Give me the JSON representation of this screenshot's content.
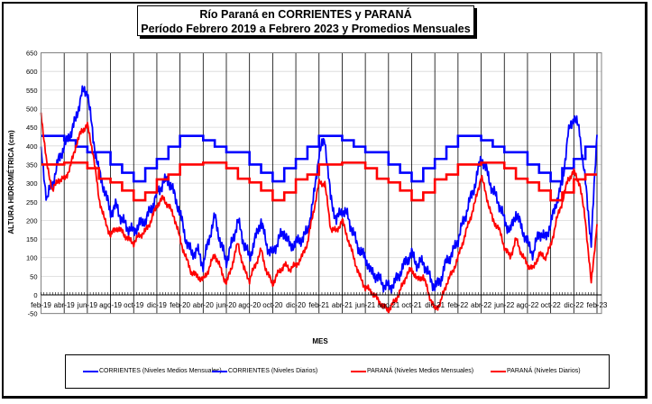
{
  "title_line1": "Río Paraná en CORRIENTES  y PARANÁ",
  "title_line2": "Período Febrero 2019 a Febrero 2023 y Promedios  Mensuales",
  "colors": {
    "corrientes": "#0000ff",
    "parana": "#ff0000"
  },
  "chart_data": {
    "type": "line",
    "title": "Río Paraná en CORRIENTES y PARANÁ - Período Febrero 2019 a Febrero 2023 y Promedios Mensuales",
    "xlabel": "MES",
    "ylabel": "ALTURA HIDROMÉTRICA (cm)",
    "ylim": [
      -50,
      650
    ],
    "yticks": [
      "-50",
      "0",
      "50",
      "100",
      "150",
      "200",
      "250",
      "300",
      "350",
      "400",
      "450",
      "500",
      "550",
      "600",
      "650"
    ],
    "xticks": [
      "feb-19",
      "abr-19",
      "jun-19",
      "ago-19",
      "oct-19",
      "dic-19",
      "feb-20",
      "abr-20",
      "jun-20",
      "ago-20",
      "oct-20",
      "dic-20",
      "feb-21",
      "abr-21",
      "jun-21",
      "ago-21",
      "oct-21",
      "dic-21",
      "feb-22",
      "abr-22",
      "jun-22",
      "ago-22",
      "oct-22",
      "dic-22",
      "feb-23"
    ],
    "x_unit": "months since feb-19",
    "legend_position": "bottom",
    "series": [
      {
        "name": "CORRIENTES (Niveles Medios Mensuales)",
        "color": "#0000ff",
        "kind": "monthly-step",
        "values": [
          427,
          427,
          415,
          398,
          383,
          383,
          350,
          328,
          305,
          340,
          365,
          398,
          427,
          427,
          415,
          398,
          383,
          383,
          350,
          328,
          305,
          340,
          365,
          398,
          427,
          427,
          415,
          398,
          383,
          383,
          350,
          328,
          305,
          340,
          365,
          398,
          427,
          427,
          415,
          398,
          383,
          383,
          350,
          328,
          305,
          340,
          365,
          398
        ]
      },
      {
        "name": "CORRIENTES (Niveles Diarios)",
        "color": "#0000ff",
        "kind": "daily",
        "step_months": 0.5,
        "values": [
          380,
          260,
          300,
          360,
          400,
          430,
          470,
          540,
          550,
          420,
          330,
          280,
          220,
          240,
          200,
          180,
          170,
          190,
          200,
          230,
          270,
          300,
          310,
          270,
          220,
          150,
          110,
          120,
          80,
          150,
          210,
          140,
          90,
          140,
          200,
          140,
          100,
          150,
          200,
          130,
          110,
          150,
          170,
          130,
          140,
          150,
          170,
          250,
          380,
          420,
          260,
          200,
          230,
          210,
          160,
          120,
          100,
          60,
          50,
          30,
          20,
          30,
          60,
          90,
          110,
          80,
          90,
          50,
          20,
          40,
          90,
          110,
          150,
          200,
          250,
          300,
          370,
          330,
          280,
          250,
          200,
          170,
          220,
          180,
          140,
          110,
          170,
          150,
          190,
          250,
          300,
          430,
          480,
          440,
          300,
          140,
          430
        ]
      },
      {
        "name": "PARANÁ (Niveles Medios Mensuales)",
        "color": "#ff0000",
        "kind": "monthly-step",
        "values": [
          350,
          350,
          355,
          355,
          340,
          312,
          302,
          280,
          254,
          275,
          310,
          323,
          350,
          350,
          355,
          355,
          340,
          312,
          302,
          280,
          254,
          275,
          310,
          323,
          350,
          350,
          355,
          355,
          340,
          312,
          302,
          280,
          254,
          275,
          310,
          323,
          350,
          350,
          355,
          355,
          340,
          312,
          302,
          280,
          254,
          275,
          310,
          323
        ]
      },
      {
        "name": "PARANÁ (Niveles Diarios)",
        "color": "#ff0000",
        "kind": "daily",
        "step_months": 0.5,
        "values": [
          490,
          350,
          280,
          310,
          310,
          340,
          400,
          440,
          455,
          380,
          260,
          200,
          160,
          180,
          170,
          150,
          140,
          160,
          170,
          200,
          240,
          260,
          240,
          210,
          150,
          100,
          60,
          50,
          40,
          70,
          110,
          70,
          30,
          80,
          140,
          70,
          40,
          80,
          120,
          60,
          30,
          60,
          80,
          70,
          80,
          100,
          140,
          220,
          300,
          300,
          180,
          170,
          200,
          150,
          100,
          50,
          20,
          10,
          -10,
          -30,
          -40,
          -20,
          10,
          50,
          70,
          40,
          50,
          0,
          -40,
          -20,
          30,
          60,
          100,
          150,
          200,
          250,
          320,
          260,
          200,
          180,
          130,
          100,
          150,
          110,
          80,
          70,
          110,
          100,
          130,
          200,
          250,
          310,
          330,
          300,
          200,
          30,
          190
        ]
      }
    ]
  }
}
